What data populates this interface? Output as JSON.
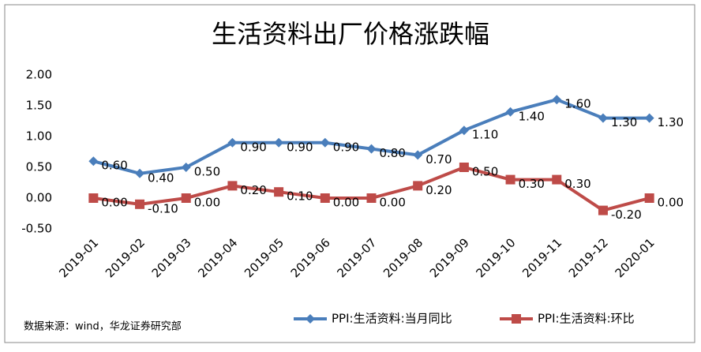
{
  "chart_data": {
    "type": "line",
    "title": "生活资料出厂价格涨跌幅",
    "source": "数据来源：wind，华龙证券研究部",
    "categories": [
      "2019-01",
      "2019-02",
      "2019-03",
      "2019-04",
      "2019-05",
      "2019-06",
      "2019-07",
      "2019-08",
      "2019-09",
      "2019-10",
      "2019-11",
      "2019-12",
      "2020-01"
    ],
    "series": [
      {
        "name": "PPI:生活资料:当月同比",
        "color": "#4a7ebb",
        "marker": "diamond",
        "values": [
          0.6,
          0.4,
          0.5,
          0.9,
          0.9,
          0.9,
          0.8,
          0.7,
          1.1,
          1.4,
          1.6,
          1.3,
          1.3
        ],
        "value_labels": [
          "0.60",
          "0.40",
          "0.50",
          "0.90",
          "0.90",
          "0.90",
          "0.80",
          "0.70",
          "1.10",
          "1.40",
          "1.60",
          "1.30",
          "1.30"
        ]
      },
      {
        "name": "PPI:生活资料:环比",
        "color": "#be4b48",
        "marker": "square",
        "values": [
          0,
          -0.1,
          0,
          0.2,
          0.1,
          0,
          0,
          0.2,
          0.5,
          0.3,
          0.3,
          -0.2,
          0
        ],
        "value_labels": [
          "0.00",
          "-0.10",
          "0.00",
          "0.20",
          "0.10",
          "0.00",
          "0.00",
          "0.20",
          "0.50",
          "0.30",
          "0.30",
          "-0.20",
          "0.00"
        ]
      }
    ],
    "ylim": [
      -0.5,
      2
    ],
    "yticks": [
      {
        "value": 2,
        "label": "2.00"
      },
      {
        "value": 1.5,
        "label": "1.50"
      },
      {
        "value": 1,
        "label": "1.00"
      },
      {
        "value": 0.5,
        "label": "0.50"
      },
      {
        "value": 0,
        "label": "0.00"
      },
      {
        "value": -0.5,
        "label": "-0.50"
      }
    ],
    "grid": false,
    "legend": "bottom"
  }
}
